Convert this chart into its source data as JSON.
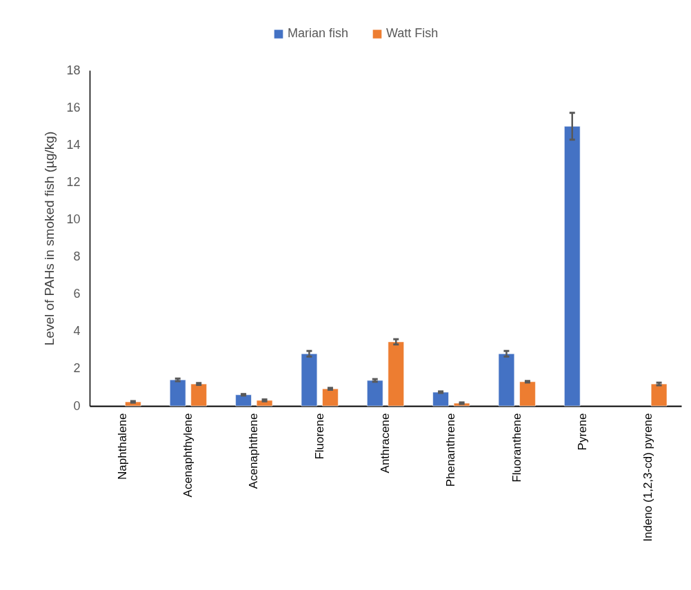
{
  "chart_data": {
    "type": "bar",
    "ylabel": "Level of PAHs in smoked fish (µg/kg)",
    "categories": [
      "Naphthalene",
      "Acenaphthylene",
      "Acenaphthene",
      "Fluorene",
      "Anthracene",
      "Phenanthrene",
      "Fluoranthene",
      "Pyrene",
      "Indeno (1,2,3-cd) pyrene"
    ],
    "series": [
      {
        "name": "Marian fish",
        "color": "#4472c4",
        "values": [
          null,
          1.4,
          0.6,
          2.8,
          1.37,
          0.74,
          2.8,
          15.0,
          null
        ],
        "errors": [
          null,
          0.07,
          0.04,
          0.15,
          0.07,
          0.04,
          0.15,
          0.72,
          null
        ]
      },
      {
        "name": "Watt Fish",
        "color": "#ed7d31",
        "values": [
          0.22,
          1.18,
          0.3,
          0.92,
          3.44,
          0.15,
          1.3,
          null,
          1.18
        ],
        "errors": [
          0.04,
          0.05,
          0.05,
          0.05,
          0.14,
          0.04,
          0.04,
          null,
          0.07
        ]
      }
    ],
    "ylim": [
      0,
      18
    ],
    "yticks": [
      0,
      2,
      4,
      6,
      8,
      10,
      12,
      14,
      16,
      18
    ],
    "grid": false,
    "legend": "top"
  }
}
